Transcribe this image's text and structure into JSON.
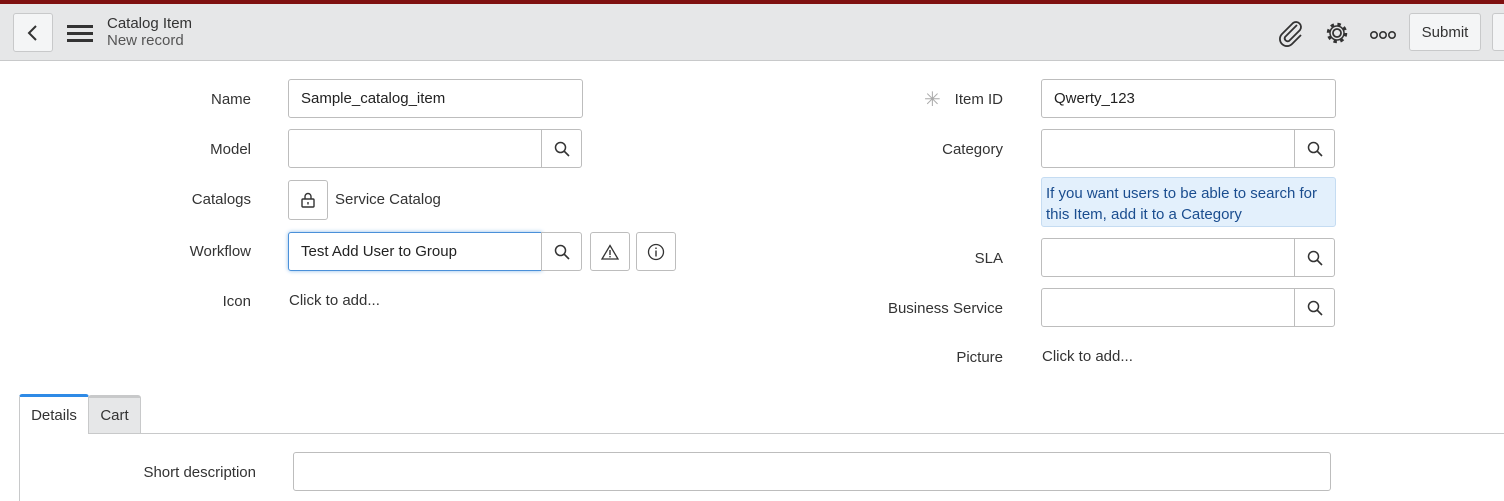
{
  "header": {
    "title": "Catalog Item",
    "subtitle": "New record",
    "submit_label": "Submit",
    "icons": [
      "back-icon",
      "menu-icon",
      "paperclip-icon",
      "gear-icon",
      "more-icon"
    ]
  },
  "form": {
    "name": {
      "label": "Name",
      "value": "Sample_catalog_item"
    },
    "model": {
      "label": "Model",
      "value": ""
    },
    "catalogs": {
      "label": "Catalogs",
      "value": "Service Catalog"
    },
    "workflow": {
      "label": "Workflow",
      "value": "Test Add User to Group"
    },
    "icon": {
      "label": "Icon",
      "value": "Click to add..."
    },
    "item_id": {
      "label": "Item ID",
      "required_mark": "✳",
      "value": "Qwerty_123"
    },
    "category": {
      "label": "Category",
      "value": "",
      "hint": "If you want users to be able to search for this Item, add it to a Category"
    },
    "sla": {
      "label": "SLA",
      "value": ""
    },
    "business_service": {
      "label": "Business Service",
      "value": ""
    },
    "picture": {
      "label": "Picture",
      "value": "Click to add..."
    }
  },
  "tabs": [
    {
      "label": "Details",
      "active": true
    },
    {
      "label": "Cart",
      "active": false
    }
  ],
  "details": {
    "short_description": {
      "label": "Short description",
      "value": ""
    }
  },
  "colors": {
    "accent_bar": "#7f1010",
    "focus": "#4a90d9",
    "tab_active": "#2e8ae6",
    "hint_bg": "#e3f0fc",
    "hint_text": "#1a4d8f"
  }
}
